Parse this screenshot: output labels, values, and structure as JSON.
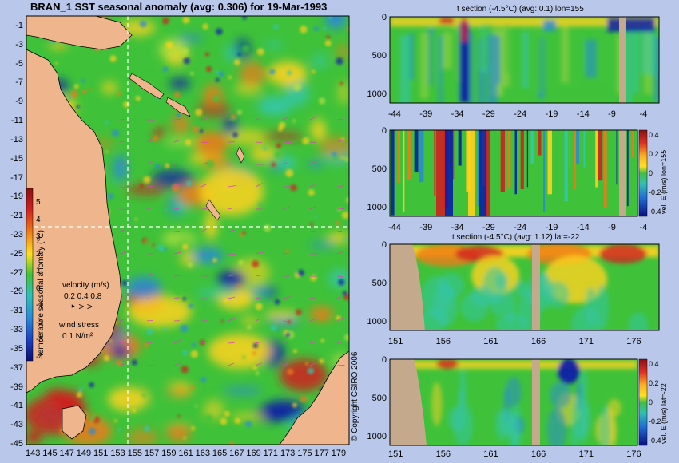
{
  "map": {
    "title": "BRAN_1 SST seasonal anomaly (avg: 0.306) for 19-Mar-1993",
    "y_ticks": [
      "-1",
      "-3",
      "-5",
      "-7",
      "-9",
      "-11",
      "-13",
      "-15",
      "-17",
      "-19",
      "-21",
      "-23",
      "-25",
      "-27",
      "-29",
      "-31",
      "-33",
      "-35",
      "-37",
      "-39",
      "-41",
      "-43",
      "-45"
    ],
    "x_ticks": [
      "143",
      "145",
      "147",
      "149",
      "151",
      "153",
      "155",
      "157",
      "159",
      "161",
      "163",
      "165",
      "167",
      "169",
      "171",
      "173",
      "175",
      "177",
      "179"
    ],
    "colorbar": {
      "label": "temperature seasonal anomaly (°C)",
      "ticks": [
        "5",
        "4",
        "3",
        "2",
        "1",
        "0",
        "-1",
        "-2",
        "-3",
        "-4"
      ]
    },
    "velocity": {
      "title": "velocity (m/s)",
      "scale": "0.2 0.4 0.8"
    },
    "wind": {
      "title": "wind stress",
      "scale": "0.1 N/m²"
    },
    "copyright": "© Copyright CSIRO 2006"
  },
  "panels": [
    {
      "title": "t section (-4.5°C) (avg: 0.1) lon=155",
      "y_ticks": [
        "0",
        "500",
        "1000"
      ],
      "x_ticks": [
        "-44",
        "-39",
        "-34",
        "-29",
        "-24",
        "-19",
        "-14",
        "-9",
        "-4"
      ]
    },
    {
      "title": "",
      "y_ticks": [
        "0",
        "500",
        "1000"
      ],
      "x_ticks": [
        "-44",
        "-39",
        "-34",
        "-29",
        "-24",
        "-19",
        "-14",
        "-9",
        "-4"
      ],
      "colorbar_label": "vel. E (m/s) lon=155",
      "colorbar_ticks": [
        "0.4",
        "0.2",
        "0",
        "-0.2",
        "-0.4"
      ]
    },
    {
      "title": "t section (-4.5°C) (avg: 1.12) lat=-22",
      "y_ticks": [
        "0",
        "500",
        "1000"
      ],
      "x_ticks": [
        "151",
        "156",
        "161",
        "166",
        "171",
        "176"
      ]
    },
    {
      "title": "",
      "y_ticks": [
        "0",
        "500",
        "1000"
      ],
      "x_ticks": [
        "151",
        "156",
        "161",
        "166",
        "171",
        "176"
      ],
      "colorbar_label": "vel. E (m/s) lat=-22",
      "colorbar_ticks": [
        "0.4",
        "0.2",
        "0",
        "-0.2",
        "-0.4"
      ]
    }
  ],
  "chart_data": [
    {
      "type": "heatmap",
      "title": "BRAN_1 SST seasonal anomaly (avg: 0.306) for 19-Mar-1993",
      "x_range": [
        142,
        180
      ],
      "y_range": [
        -45,
        0
      ],
      "color_range": [
        -4,
        5
      ],
      "colorbar_label": "temperature seasonal anomaly (°C)",
      "section_lines": {
        "lon": 155,
        "lat": -22
      }
    },
    {
      "type": "heatmap",
      "title": "t section (-4.5°C) (avg: 0.1) lon=155",
      "x_range": [
        -46,
        0
      ],
      "y_range": [
        0,
        1050
      ]
    },
    {
      "type": "heatmap",
      "title": "",
      "x_range": [
        -46,
        0
      ],
      "y_range": [
        0,
        1050
      ],
      "color_range": [
        -0.4,
        0.4
      ],
      "colorbar_label": "vel. E (m/s) lon=155"
    },
    {
      "type": "heatmap",
      "title": "t section (-4.5°C) (avg: 1.12) lat=-22",
      "x_range": [
        150,
        181
      ],
      "y_range": [
        0,
        1050
      ]
    },
    {
      "type": "heatmap",
      "title": "",
      "x_range": [
        150,
        181
      ],
      "y_range": [
        0,
        1050
      ],
      "color_range": [
        -0.4,
        0.4
      ],
      "colorbar_label": "vel. E (m/s) lat=-22"
    }
  ],
  "colors": {
    "background": "#b9c8ea",
    "land": "#efb68e",
    "section_land": "#c5a98c",
    "field_green": "#3fc23a",
    "warm": "#ffd21e",
    "hot": "#d02020",
    "cool": "#2a8ad8",
    "cold": "#0a1ea8",
    "cyan": "#34c6b0",
    "vector": "#e040c0"
  }
}
